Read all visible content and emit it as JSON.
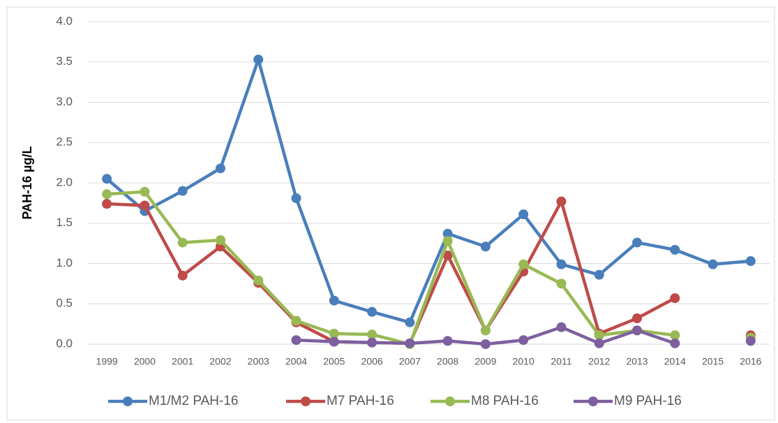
{
  "chart_data": {
    "type": "line",
    "y_label": "PAH-16 µg/L",
    "categories": [
      "1999",
      "2000",
      "2001",
      "2002",
      "2003",
      "2004",
      "2005",
      "2006",
      "2007",
      "2008",
      "2009",
      "2010",
      "2011",
      "2012",
      "2013",
      "2014",
      "2015",
      "2016"
    ],
    "series": [
      {
        "name": "M1/M2 PAH-16",
        "color": "#4a7ebb",
        "values": [
          2.05,
          1.65,
          1.9,
          2.18,
          3.53,
          1.81,
          0.54,
          0.4,
          0.27,
          1.37,
          1.21,
          1.61,
          0.99,
          0.86,
          1.26,
          1.17,
          0.99,
          1.03
        ]
      },
      {
        "name": "M7 PAH-16",
        "color": "#be4b48",
        "values": [
          1.74,
          1.72,
          0.85,
          1.21,
          0.76,
          0.27,
          0.03,
          0.02,
          0.01,
          1.1,
          0.17,
          0.9,
          1.77,
          0.13,
          0.32,
          0.57,
          null,
          0.11
        ]
      },
      {
        "name": "M8 PAH-16",
        "color": "#98b954",
        "values": [
          1.86,
          1.89,
          1.26,
          1.29,
          0.79,
          0.29,
          0.13,
          0.12,
          0.0,
          1.28,
          0.17,
          0.99,
          0.75,
          0.11,
          0.17,
          0.11,
          null,
          0.08
        ]
      },
      {
        "name": "M9 PAH-16",
        "color": "#7d5fa0",
        "values": [
          null,
          null,
          null,
          null,
          null,
          0.05,
          0.03,
          0.02,
          0.01,
          0.04,
          0.0,
          0.05,
          0.21,
          0.01,
          0.17,
          0.01,
          null,
          0.04
        ]
      }
    ],
    "ylim": [
      0,
      4
    ],
    "yticks": [
      {
        "value": 0,
        "label": "0.0"
      },
      {
        "value": 0.5,
        "label": "0.5"
      },
      {
        "value": 1,
        "label": "1.0"
      },
      {
        "value": 1.5,
        "label": "1.5"
      },
      {
        "value": 2,
        "label": "2.0"
      },
      {
        "value": 2.5,
        "label": "2.5"
      },
      {
        "value": 3,
        "label": "3.0"
      },
      {
        "value": 3.5,
        "label": "3.5"
      },
      {
        "value": 4,
        "label": "4.0"
      }
    ],
    "grid": true,
    "legend": "bottom"
  }
}
